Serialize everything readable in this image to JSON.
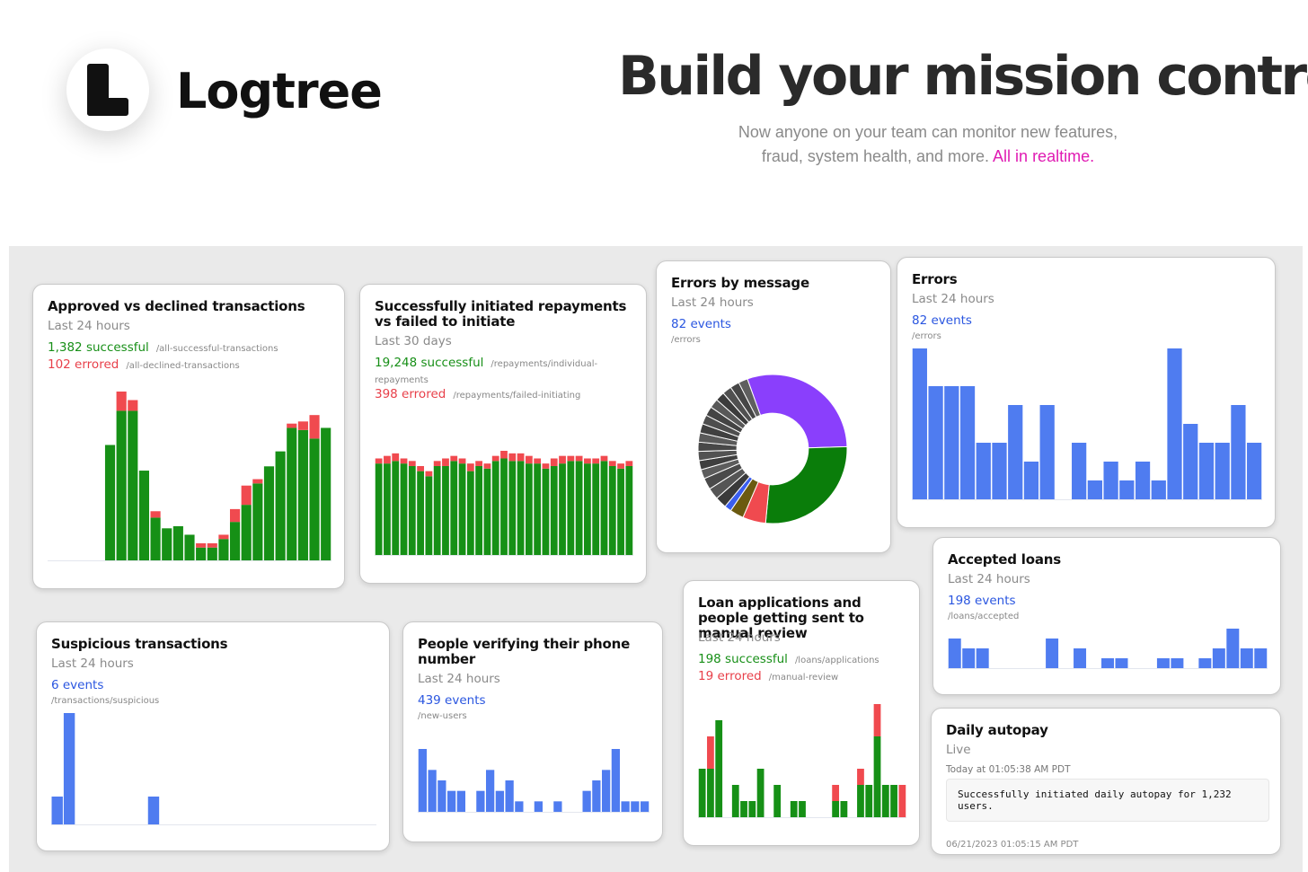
{
  "brand": {
    "name": "Logtree",
    "logo_icon": "logtree-l-logo"
  },
  "hero": {
    "headline": "Build your mission control",
    "sub_line1": "Now anyone on your team can monitor new features,",
    "sub_line2": "fraud, system health, and more.",
    "sub_accent": "All in realtime.",
    "accent_color": "#e01bb3"
  },
  "colors": {
    "success": "#169016",
    "error": "#f04a4f",
    "events": "#4f7cf0",
    "donut_primary": "#8a3ffc"
  },
  "cards": {
    "approved": {
      "title": "Approved vs declined transactions",
      "subtitle": "Last 24 hours",
      "success_text": "1,382 successful",
      "success_path": "/all-successful-transactions",
      "error_text": "102 errored",
      "error_path": "/all-declined-transactions"
    },
    "repayments": {
      "title": "Successfully initiated repayments vs failed to initiate",
      "subtitle": "Last 30 days",
      "success_text": "19,248 successful",
      "success_path": "/repayments/individual-repayments",
      "error_text": "398 errored",
      "error_path": "/repayments/failed-initiating"
    },
    "errors_by_message": {
      "title": "Errors by message",
      "subtitle": "Last 24 hours",
      "events_text": "82 events",
      "path": "/errors"
    },
    "errors": {
      "title": "Errors",
      "subtitle": "Last 24 hours",
      "events_text": "82 events",
      "path": "/errors"
    },
    "accepted_loans": {
      "title": "Accepted loans",
      "subtitle": "Last 24 hours",
      "events_text": "198 events",
      "path": "/loans/accepted"
    },
    "suspicious": {
      "title": "Suspicious transactions",
      "subtitle": "Last 24 hours",
      "events_text": "6 events",
      "path": "/transactions/suspicious"
    },
    "phone": {
      "title": "People verifying their phone number",
      "subtitle": "Last 24 hours",
      "events_text": "439 events",
      "path": "/new-users"
    },
    "loan_apps": {
      "title": "Loan applications and people getting sent to manual review",
      "subtitle": "Last 24 hours",
      "success_text": "198 successful",
      "success_path": "/loans/applications",
      "error_text": "19 errored",
      "error_path": "/manual-review"
    },
    "autopay": {
      "title": "Daily autopay",
      "subtitle": "Live",
      "log_time": "Today at 01:05:38 AM PDT",
      "log_message": "Successfully initiated daily autopay for 1,232 users.",
      "next_time": "06/21/2023 01:05:15 AM PDT"
    }
  },
  "chart_data": [
    {
      "id": "approved",
      "type": "bar",
      "stacked": true,
      "series": [
        {
          "name": "successful",
          "values": [
            0,
            0,
            0,
            0,
            0,
            54,
            70,
            70,
            42,
            20,
            15,
            16,
            12,
            6,
            6,
            10,
            18,
            26,
            36,
            44,
            51,
            62,
            61,
            57,
            62
          ]
        },
        {
          "name": "errored",
          "values": [
            0,
            0,
            0,
            0,
            0,
            0,
            9,
            5,
            0,
            3,
            0,
            0,
            0,
            2,
            2,
            2,
            6,
            9,
            2,
            0,
            0,
            2,
            4,
            11,
            0
          ]
        }
      ]
    },
    {
      "id": "repayments",
      "type": "bar",
      "stacked": true,
      "series": [
        {
          "name": "successful",
          "values": [
            36,
            36,
            37,
            36,
            35,
            33,
            31,
            35,
            35,
            37,
            36,
            33,
            35,
            34,
            37,
            38,
            37,
            37,
            36,
            36,
            34,
            35,
            36,
            37,
            37,
            36,
            36,
            37,
            35,
            34,
            35
          ]
        },
        {
          "name": "errored",
          "values": [
            2,
            3,
            3,
            2,
            2,
            2,
            2,
            2,
            3,
            2,
            2,
            3,
            2,
            2,
            2,
            3,
            3,
            3,
            3,
            2,
            2,
            3,
            3,
            2,
            2,
            2,
            2,
            2,
            2,
            2,
            2
          ]
        }
      ]
    },
    {
      "id": "errors_by_message",
      "type": "pie",
      "donut": true,
      "values": [
        30,
        27,
        5,
        3,
        1.5,
        2.5,
        2.5,
        2.5,
        2,
        2,
        2,
        2,
        2,
        2,
        2,
        2,
        2,
        2,
        2,
        2,
        2
      ],
      "colors": [
        "#8a3ffc",
        "#0a7d0a",
        "#f04a4f",
        "#6b5a10",
        "#3a5ef0",
        "#3a3a3a",
        "#555",
        "#4a4a4a",
        "#5c5c5c",
        "#3f3f3f",
        "#525252",
        "#484848",
        "#5a5a5a",
        "#404040",
        "#4e4e4e",
        "#444",
        "#585858",
        "#3c3c3c",
        "#505050",
        "#464646",
        "#5f5f5f"
      ]
    },
    {
      "id": "errors",
      "type": "bar",
      "values": [
        8,
        6,
        6,
        6,
        3,
        3,
        5,
        2,
        5,
        0,
        3,
        1,
        2,
        1,
        2,
        1,
        8,
        4,
        3,
        3,
        5,
        3
      ],
      "ylim": [
        0,
        8
      ]
    },
    {
      "id": "accepted_loans",
      "type": "bar",
      "values": [
        3,
        2,
        2,
        0,
        0,
        0,
        0,
        3,
        0,
        2,
        0,
        1,
        1,
        0,
        0,
        1,
        1,
        0,
        1,
        2,
        4,
        2,
        2
      ],
      "ylim": [
        0,
        4
      ]
    },
    {
      "id": "suspicious",
      "type": "bar",
      "values": [
        1,
        4,
        0,
        0,
        0,
        0,
        0,
        0,
        1,
        0,
        0,
        0,
        0,
        0,
        0,
        0,
        0,
        0,
        0,
        0,
        0,
        0,
        0,
        0,
        0,
        0,
        0
      ],
      "ylim": [
        0,
        4
      ]
    },
    {
      "id": "phone",
      "type": "bar",
      "values": [
        6,
        4,
        3,
        2,
        2,
        0,
        2,
        4,
        2,
        3,
        1,
        0,
        1,
        0,
        1,
        0,
        0,
        2,
        3,
        4,
        6,
        1,
        1,
        1
      ],
      "ylim": [
        0,
        6
      ]
    },
    {
      "id": "loan_apps",
      "type": "bar",
      "stacked": true,
      "series": [
        {
          "name": "successful",
          "values": [
            3,
            3,
            6,
            0,
            2,
            1,
            1,
            3,
            0,
            2,
            0,
            1,
            1,
            0,
            0,
            0,
            1,
            1,
            0,
            2,
            2,
            5,
            2,
            2,
            0
          ]
        },
        {
          "name": "errored",
          "values": [
            0,
            2,
            0,
            0,
            0,
            0,
            0,
            0,
            0,
            0,
            0,
            0,
            0,
            0,
            0,
            0,
            1,
            0,
            0,
            1,
            0,
            2,
            0,
            0,
            2
          ]
        }
      ],
      "ylim": [
        0,
        7
      ]
    }
  ]
}
